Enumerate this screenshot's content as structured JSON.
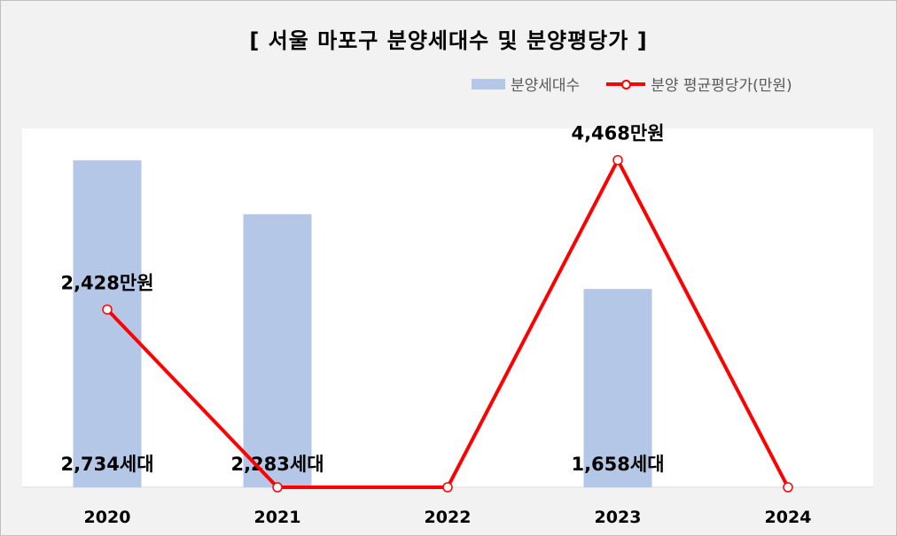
{
  "chart_data": {
    "type": "bar",
    "title": "[ 서울 마포구 분양세대수 및 분양평당가 ]",
    "categories": [
      "2020",
      "2021",
      "2022",
      "2023",
      "2024"
    ],
    "series": [
      {
        "name": "분양세대수",
        "type": "bar",
        "color": "#b4c7e7",
        "values": [
          2734,
          2283,
          0,
          1658,
          0
        ],
        "labels": [
          "2,734세대",
          "2,283세대",
          "",
          "1,658세대",
          ""
        ]
      },
      {
        "name": "분양 평균평당가(만원)",
        "type": "line",
        "color": "#ff0000",
        "values": [
          2428,
          0,
          0,
          4468,
          0
        ],
        "labels": [
          "2,428만원",
          "",
          "",
          "4,468만원",
          ""
        ]
      }
    ],
    "bar_axis_max": 3000,
    "line_axis_max": 4900,
    "grid": false,
    "legend_position": "top-right"
  }
}
